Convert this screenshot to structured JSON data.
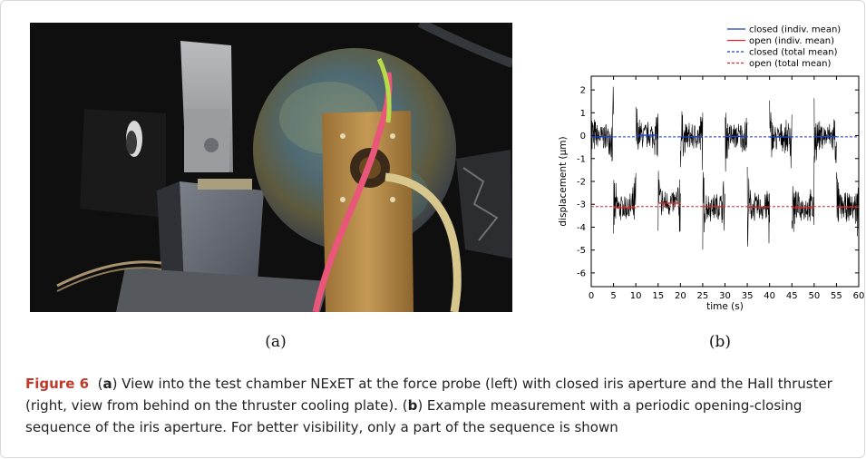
{
  "figure": {
    "label_a": "(a)",
    "label_b": "(b)",
    "caption_title": "Figure 6",
    "caption_a_letter": "a",
    "caption_a_text": ") View into the test chamber NExET at the force probe (left) with closed iris aperture and the Hall thruster (right, view from behind on the thruster cooling plate). (",
    "caption_b_letter": "b",
    "caption_b_text": ") Example measurement with a periodic opening-closing sequence of the iris aperture. For better visibility, only a part of the sequence is shown"
  },
  "colors": {
    "closed": "#1f3fbf",
    "open": "#d62a2a",
    "signal": "#000000",
    "caption_title": "#c0392b"
  },
  "chart_data": {
    "type": "line",
    "xlabel": "time (s)",
    "ylabel": "displacement (µm)",
    "xlim": [
      0,
      60
    ],
    "ylim": [
      -6.6,
      2.6
    ],
    "x_ticks": [
      0,
      5,
      10,
      15,
      20,
      25,
      30,
      35,
      40,
      45,
      50,
      55,
      60
    ],
    "y_ticks": [
      2,
      1,
      0,
      -1,
      -2,
      -3,
      -4,
      -5,
      -6
    ],
    "legend_position": "top-right",
    "legend": [
      {
        "label": "closed (indiv. mean)",
        "style": "solid",
        "color": "#1f3fbf"
      },
      {
        "label": "open (indiv. mean)",
        "style": "solid",
        "color": "#d62a2a"
      },
      {
        "label": "closed (total mean)",
        "style": "dashed",
        "color": "#1f3fbf"
      },
      {
        "label": "open (total mean)",
        "style": "dashed",
        "color": "#d62a2a"
      }
    ],
    "total_means": {
      "closed": -0.05,
      "open": -3.1
    },
    "segments": [
      {
        "state": "closed",
        "x_start": 0,
        "x_end": 5,
        "mean": -0.05
      },
      {
        "state": "open",
        "x_start": 5,
        "x_end": 10,
        "mean": -3.15
      },
      {
        "state": "closed",
        "x_start": 10,
        "x_end": 15,
        "mean": 0.02
      },
      {
        "state": "open",
        "x_start": 15,
        "x_end": 20,
        "mean": -2.95
      },
      {
        "state": "closed",
        "x_start": 20,
        "x_end": 25,
        "mean": -0.05
      },
      {
        "state": "open",
        "x_start": 25,
        "x_end": 30,
        "mean": -3.1
      },
      {
        "state": "closed",
        "x_start": 30,
        "x_end": 35,
        "mean": -0.03
      },
      {
        "state": "open",
        "x_start": 35,
        "x_end": 40,
        "mean": -3.12
      },
      {
        "state": "closed",
        "x_start": 40,
        "x_end": 45,
        "mean": -0.06
      },
      {
        "state": "open",
        "x_start": 45,
        "x_end": 50,
        "mean": -3.15
      },
      {
        "state": "closed",
        "x_start": 50,
        "x_end": 55,
        "mean": -0.04
      },
      {
        "state": "open",
        "x_start": 55,
        "x_end": 60,
        "mean": -3.12
      }
    ]
  }
}
